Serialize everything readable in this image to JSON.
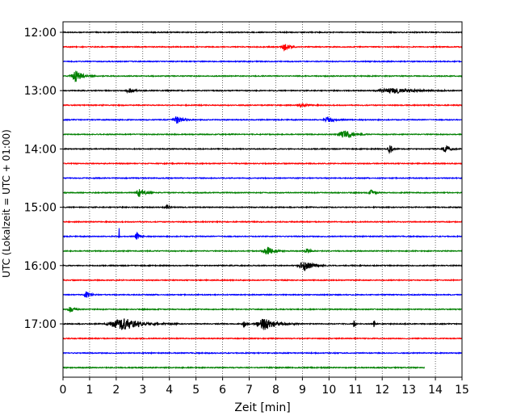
{
  "chart_data": {
    "type": "line",
    "title": "",
    "xlabel": "Zeit  [min]",
    "ylabel": "UTC (Lokalzeit = UTC + 01:00)",
    "xlim": [
      0,
      15
    ],
    "x_ticks": [
      "0",
      "1",
      "2",
      "3",
      "4",
      "5",
      "6",
      "7",
      "8",
      "9",
      "10",
      "11",
      "12",
      "13",
      "14",
      "15"
    ],
    "y_ticks": [
      "12:00",
      "13:00",
      "14:00",
      "15:00",
      "16:00",
      "17:00"
    ],
    "grid": "vertical dotted at each minute",
    "trace_start": "12:00",
    "trace_interval_minutes": 15,
    "trace_colors": [
      "#000000",
      "#ff0000",
      "#0000ff",
      "#008000"
    ],
    "trace_count": 24,
    "last_trace_end_min": 13.6,
    "noise_amplitude": 0.06,
    "events": [
      {
        "trace": "12:15",
        "t": 8.35,
        "amp": 0.45,
        "dur": 0.35
      },
      {
        "trace": "12:45",
        "t": 0.5,
        "amp": 0.75,
        "dur": 0.45
      },
      {
        "trace": "13:00",
        "t": 2.5,
        "amp": 0.25,
        "dur": 0.4
      },
      {
        "trace": "13:00",
        "t": 12.5,
        "amp": 0.35,
        "dur": 1.5
      },
      {
        "trace": "13:15",
        "t": 9.0,
        "amp": 0.2,
        "dur": 0.4
      },
      {
        "trace": "13:30",
        "t": 4.3,
        "amp": 0.5,
        "dur": 0.4
      },
      {
        "trace": "13:30",
        "t": 10.0,
        "amp": 0.4,
        "dur": 0.4
      },
      {
        "trace": "13:45",
        "t": 10.6,
        "amp": 0.6,
        "dur": 0.55
      },
      {
        "trace": "14:00",
        "t": 12.3,
        "amp": 0.7,
        "dur": 0.2
      },
      {
        "trace": "14:00",
        "t": 14.4,
        "amp": 0.45,
        "dur": 0.3
      },
      {
        "trace": "14:45",
        "t": 2.9,
        "amp": 0.6,
        "dur": 0.35
      },
      {
        "trace": "14:45",
        "t": 11.6,
        "amp": 0.35,
        "dur": 0.25
      },
      {
        "trace": "15:00",
        "t": 3.9,
        "amp": 0.3,
        "dur": 0.2
      },
      {
        "trace": "15:30",
        "t": 2.1,
        "amp": 4.2,
        "dur": 0.02
      },
      {
        "trace": "15:30",
        "t": 2.8,
        "amp": 0.5,
        "dur": 0.2
      },
      {
        "trace": "15:45",
        "t": 7.7,
        "amp": 0.55,
        "dur": 0.45
      },
      {
        "trace": "15:45",
        "t": 9.2,
        "amp": 0.35,
        "dur": 0.25
      },
      {
        "trace": "16:00",
        "t": 9.1,
        "amp": 0.65,
        "dur": 0.55
      },
      {
        "trace": "16:30",
        "t": 0.9,
        "amp": 0.45,
        "dur": 0.25
      },
      {
        "trace": "16:45",
        "t": 0.3,
        "amp": 0.45,
        "dur": 0.3
      },
      {
        "trace": "17:00",
        "t": 2.3,
        "amp": 0.85,
        "dur": 1.3
      },
      {
        "trace": "17:00",
        "t": 6.8,
        "amp": 0.5,
        "dur": 0.15
      },
      {
        "trace": "17:00",
        "t": 7.6,
        "amp": 0.75,
        "dur": 0.8
      },
      {
        "trace": "17:00",
        "t": 10.95,
        "amp": 1.05,
        "dur": 0.07
      },
      {
        "trace": "17:00",
        "t": 11.7,
        "amp": 0.75,
        "dur": 0.07
      }
    ]
  }
}
